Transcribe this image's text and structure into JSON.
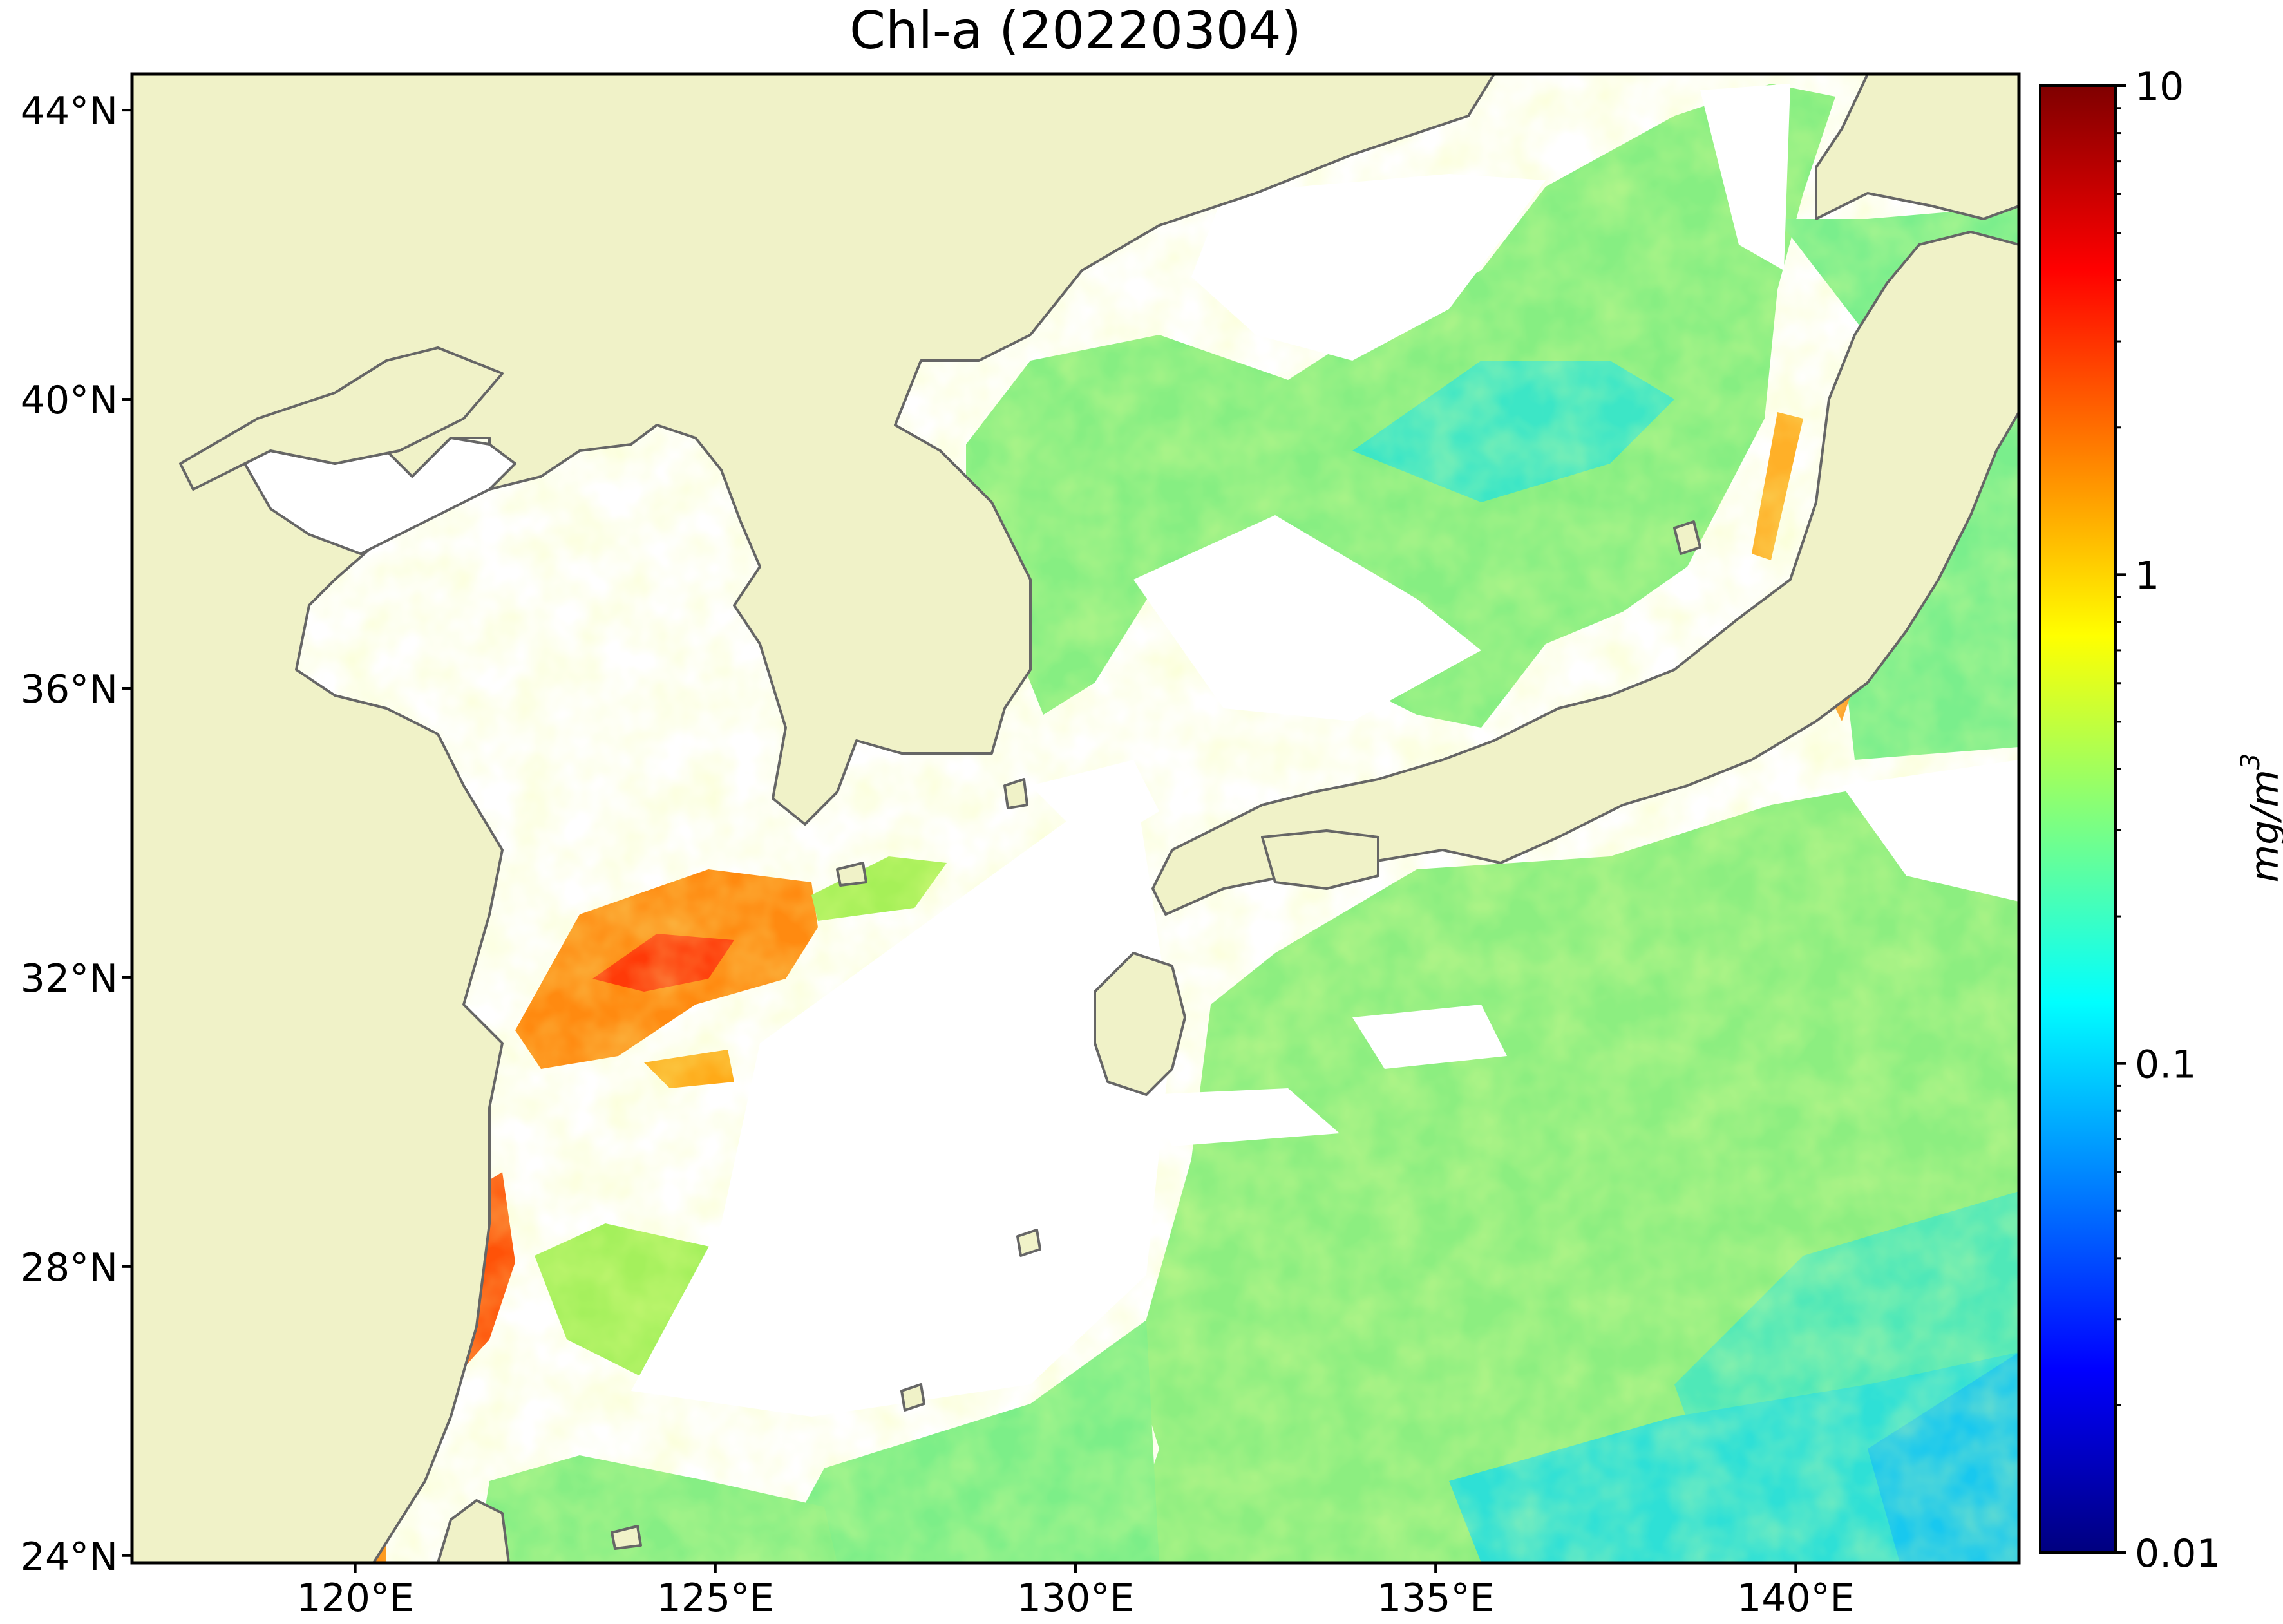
{
  "title": "Chl-a (20220304)",
  "map": {
    "lon_range": [
      116.9,
      143.1
    ],
    "lat_range": [
      23.9,
      44.5
    ],
    "lon_ticks": [
      {
        "value": 120,
        "label": "120°E"
      },
      {
        "value": 125,
        "label": "125°E"
      },
      {
        "value": 130,
        "label": "130°E"
      },
      {
        "value": 135,
        "label": "135°E"
      },
      {
        "value": 140,
        "label": "140°E"
      }
    ],
    "lat_ticks": [
      {
        "value": 24,
        "label": "24°N"
      },
      {
        "value": 28,
        "label": "28°N"
      },
      {
        "value": 32,
        "label": "32°N"
      },
      {
        "value": 36,
        "label": "36°N"
      },
      {
        "value": 40,
        "label": "40°N"
      },
      {
        "value": 44,
        "label": "44°N"
      }
    ],
    "colors": {
      "land": "#f0f2c8",
      "coastline": "#666666",
      "no_data": "#ffffff"
    }
  },
  "colorbar": {
    "scale": "log",
    "range": [
      0.01,
      10
    ],
    "unit_label": "mg/m",
    "unit_superscript": "3",
    "ticks": [
      {
        "value": 10,
        "label": "10"
      },
      {
        "value": 1,
        "label": "1"
      },
      {
        "value": 0.1,
        "label": "0.1"
      },
      {
        "value": 0.01,
        "label": "0.01"
      }
    ],
    "colormap": [
      "#00007f",
      "#0000ff",
      "#007fff",
      "#00ffff",
      "#7fff7f",
      "#ffff00",
      "#ff7f00",
      "#ff0000",
      "#7f0000"
    ]
  }
}
